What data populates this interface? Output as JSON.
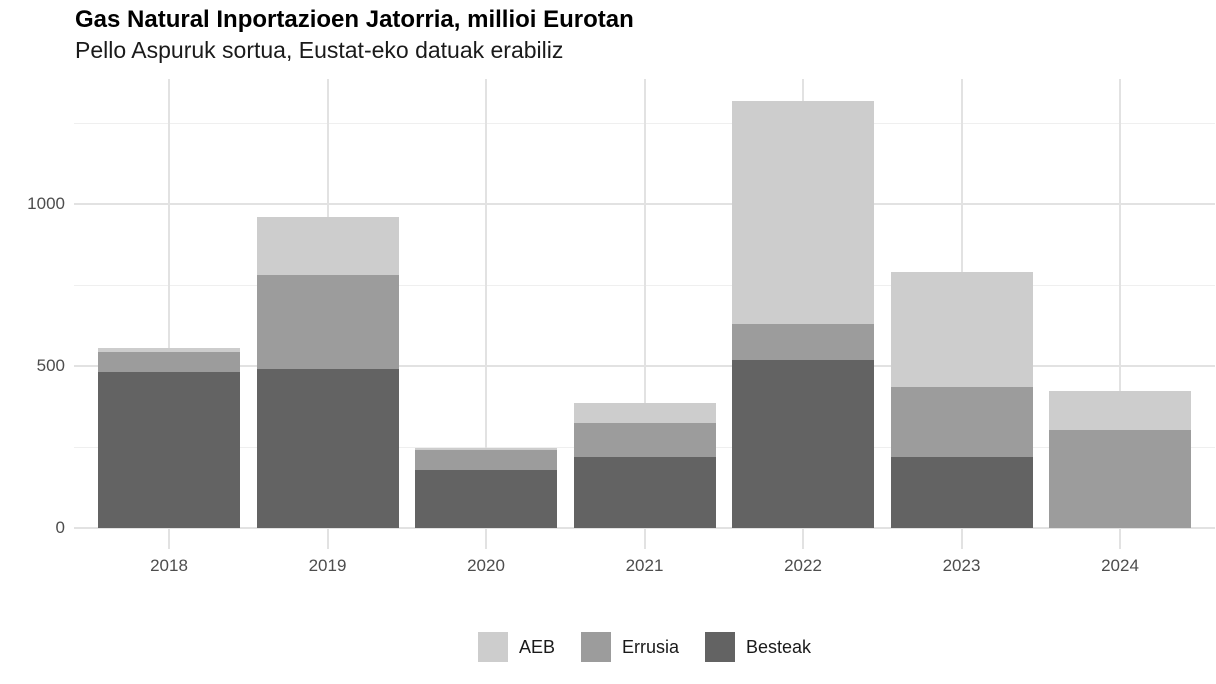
{
  "chart": {
    "title": "Gas Natural Inportazioen Jatorria, millioi Eurotan",
    "subtitle": "Pello Aspuruk sortua, Eustat-eko datuak erabiliz"
  },
  "chart_data": {
    "type": "bar",
    "stacked": true,
    "title": "Gas Natural Inportazioen Jatorria, millioi Eurotan",
    "subtitle": "Pello Aspuruk sortua, Eustat-eko datuak erabiliz",
    "categories": [
      "2018",
      "2019",
      "2020",
      "2021",
      "2022",
      "2023",
      "2024"
    ],
    "series": [
      {
        "name": "AEB",
        "color": "#cdcdcd",
        "values": [
          15,
          180,
          7,
          62,
          690,
          355,
          121
        ]
      },
      {
        "name": "Errusia",
        "color": "#9c9c9c",
        "values": [
          62,
          290,
          63,
          103,
          110,
          216,
          302
        ]
      },
      {
        "name": "Besteak",
        "color": "#636363",
        "values": [
          480,
          490,
          178,
          220,
          519,
          219,
          0
        ]
      }
    ],
    "stack_order_bottom_to_top": [
      "Besteak",
      "Errusia",
      "AEB"
    ],
    "totals": [
      557,
      960,
      248,
      385,
      1319,
      790,
      423
    ],
    "xlabel": "",
    "ylabel": "",
    "ylim": [
      0,
      1385
    ],
    "yticks": [
      0,
      500,
      1000
    ],
    "ytick_labels": [
      "0",
      "500",
      "1000"
    ],
    "minor_yticks": [
      250,
      750,
      1250
    ],
    "grid": true,
    "legend_position": "bottom",
    "style": {
      "background": "#ffffff",
      "grid_major_color": "#e2e2e2",
      "grid_minor_color": "#efefef",
      "axis_text_color": "#4d4d4d",
      "title_color": "#000000",
      "subtitle_color": "#1a1a1a",
      "legend_text_color": "#1a1a1a"
    }
  }
}
